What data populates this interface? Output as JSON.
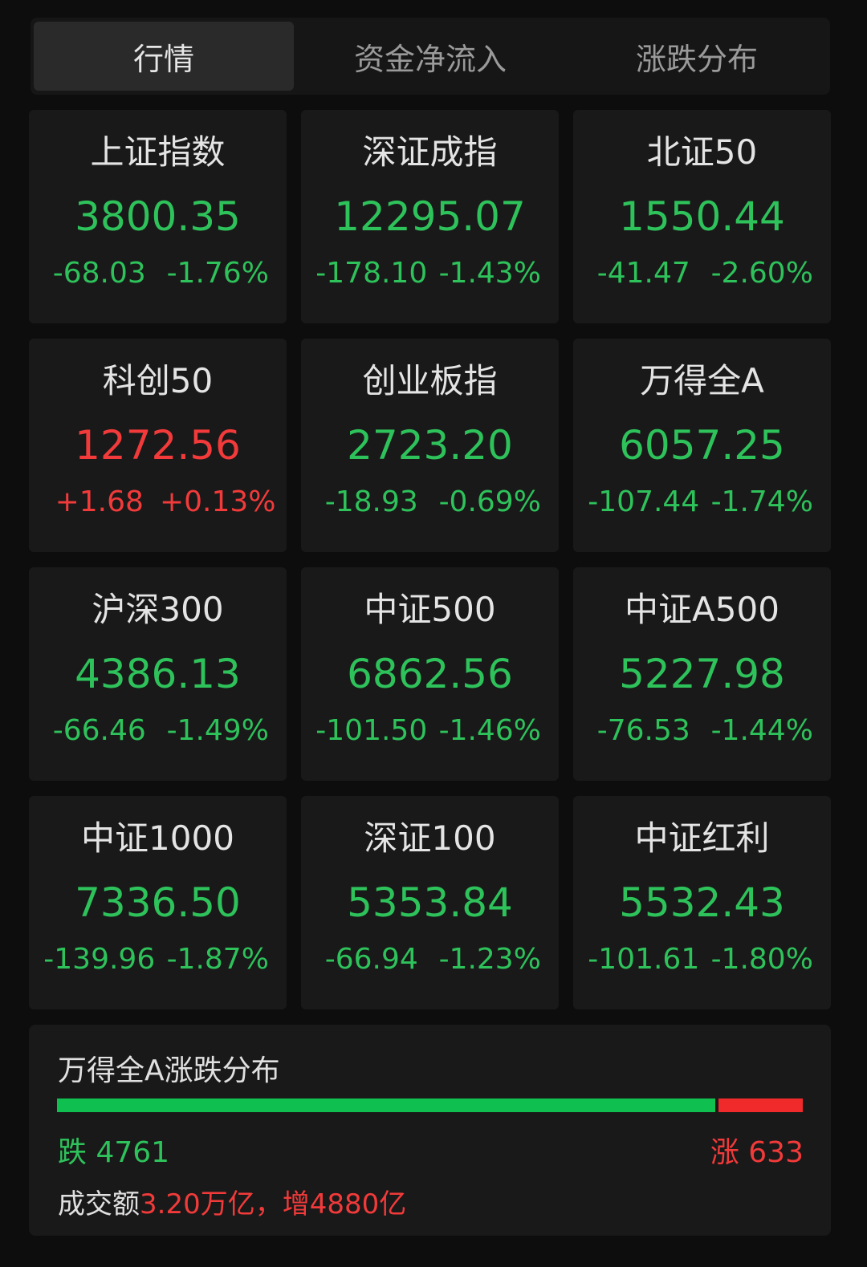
{
  "tabs": [
    {
      "label": "行情",
      "active": true
    },
    {
      "label": "资金净流入",
      "active": false
    },
    {
      "label": "涨跌分布",
      "active": false
    }
  ],
  "colors": {
    "down": "#2ec25b",
    "up": "#f23a3a",
    "background": "#0d0d0d",
    "card": "#191919"
  },
  "indices": [
    {
      "name": "上证指数",
      "value": "3800.35",
      "change": "-68.03",
      "pct": "-1.76%",
      "dir": "down"
    },
    {
      "name": "深证成指",
      "value": "12295.07",
      "change": "-178.10",
      "pct": "-1.43%",
      "dir": "down"
    },
    {
      "name": "北证50",
      "value": "1550.44",
      "change": "-41.47",
      "pct": "-2.60%",
      "dir": "down"
    },
    {
      "name": "科创50",
      "value": "1272.56",
      "change": "+1.68",
      "pct": "+0.13%",
      "dir": "up"
    },
    {
      "name": "创业板指",
      "value": "2723.20",
      "change": "-18.93",
      "pct": "-0.69%",
      "dir": "down"
    },
    {
      "name": "万得全A",
      "value": "6057.25",
      "change": "-107.44",
      "pct": "-1.74%",
      "dir": "down"
    },
    {
      "name": "沪深300",
      "value": "4386.13",
      "change": "-66.46",
      "pct": "-1.49%",
      "dir": "down"
    },
    {
      "name": "中证500",
      "value": "6862.56",
      "change": "-101.50",
      "pct": "-1.46%",
      "dir": "down"
    },
    {
      "name": "中证A500",
      "value": "5227.98",
      "change": "-76.53",
      "pct": "-1.44%",
      "dir": "down"
    },
    {
      "name": "中证1000",
      "value": "7336.50",
      "change": "-139.96",
      "pct": "-1.87%",
      "dir": "down"
    },
    {
      "name": "深证100",
      "value": "5353.84",
      "change": "-66.94",
      "pct": "-1.23%",
      "dir": "down"
    },
    {
      "name": "中证红利",
      "value": "5532.43",
      "change": "-101.61",
      "pct": "-1.80%",
      "dir": "down"
    }
  ],
  "distribution": {
    "title": "万得全A涨跌分布",
    "fall_label": "跌 4761",
    "fall_count": 4761,
    "rise_label": "涨 633",
    "rise_count": 633,
    "turnover_label": "成交额",
    "turnover_value": "3.20万亿，",
    "turnover_change": "增4880亿"
  }
}
